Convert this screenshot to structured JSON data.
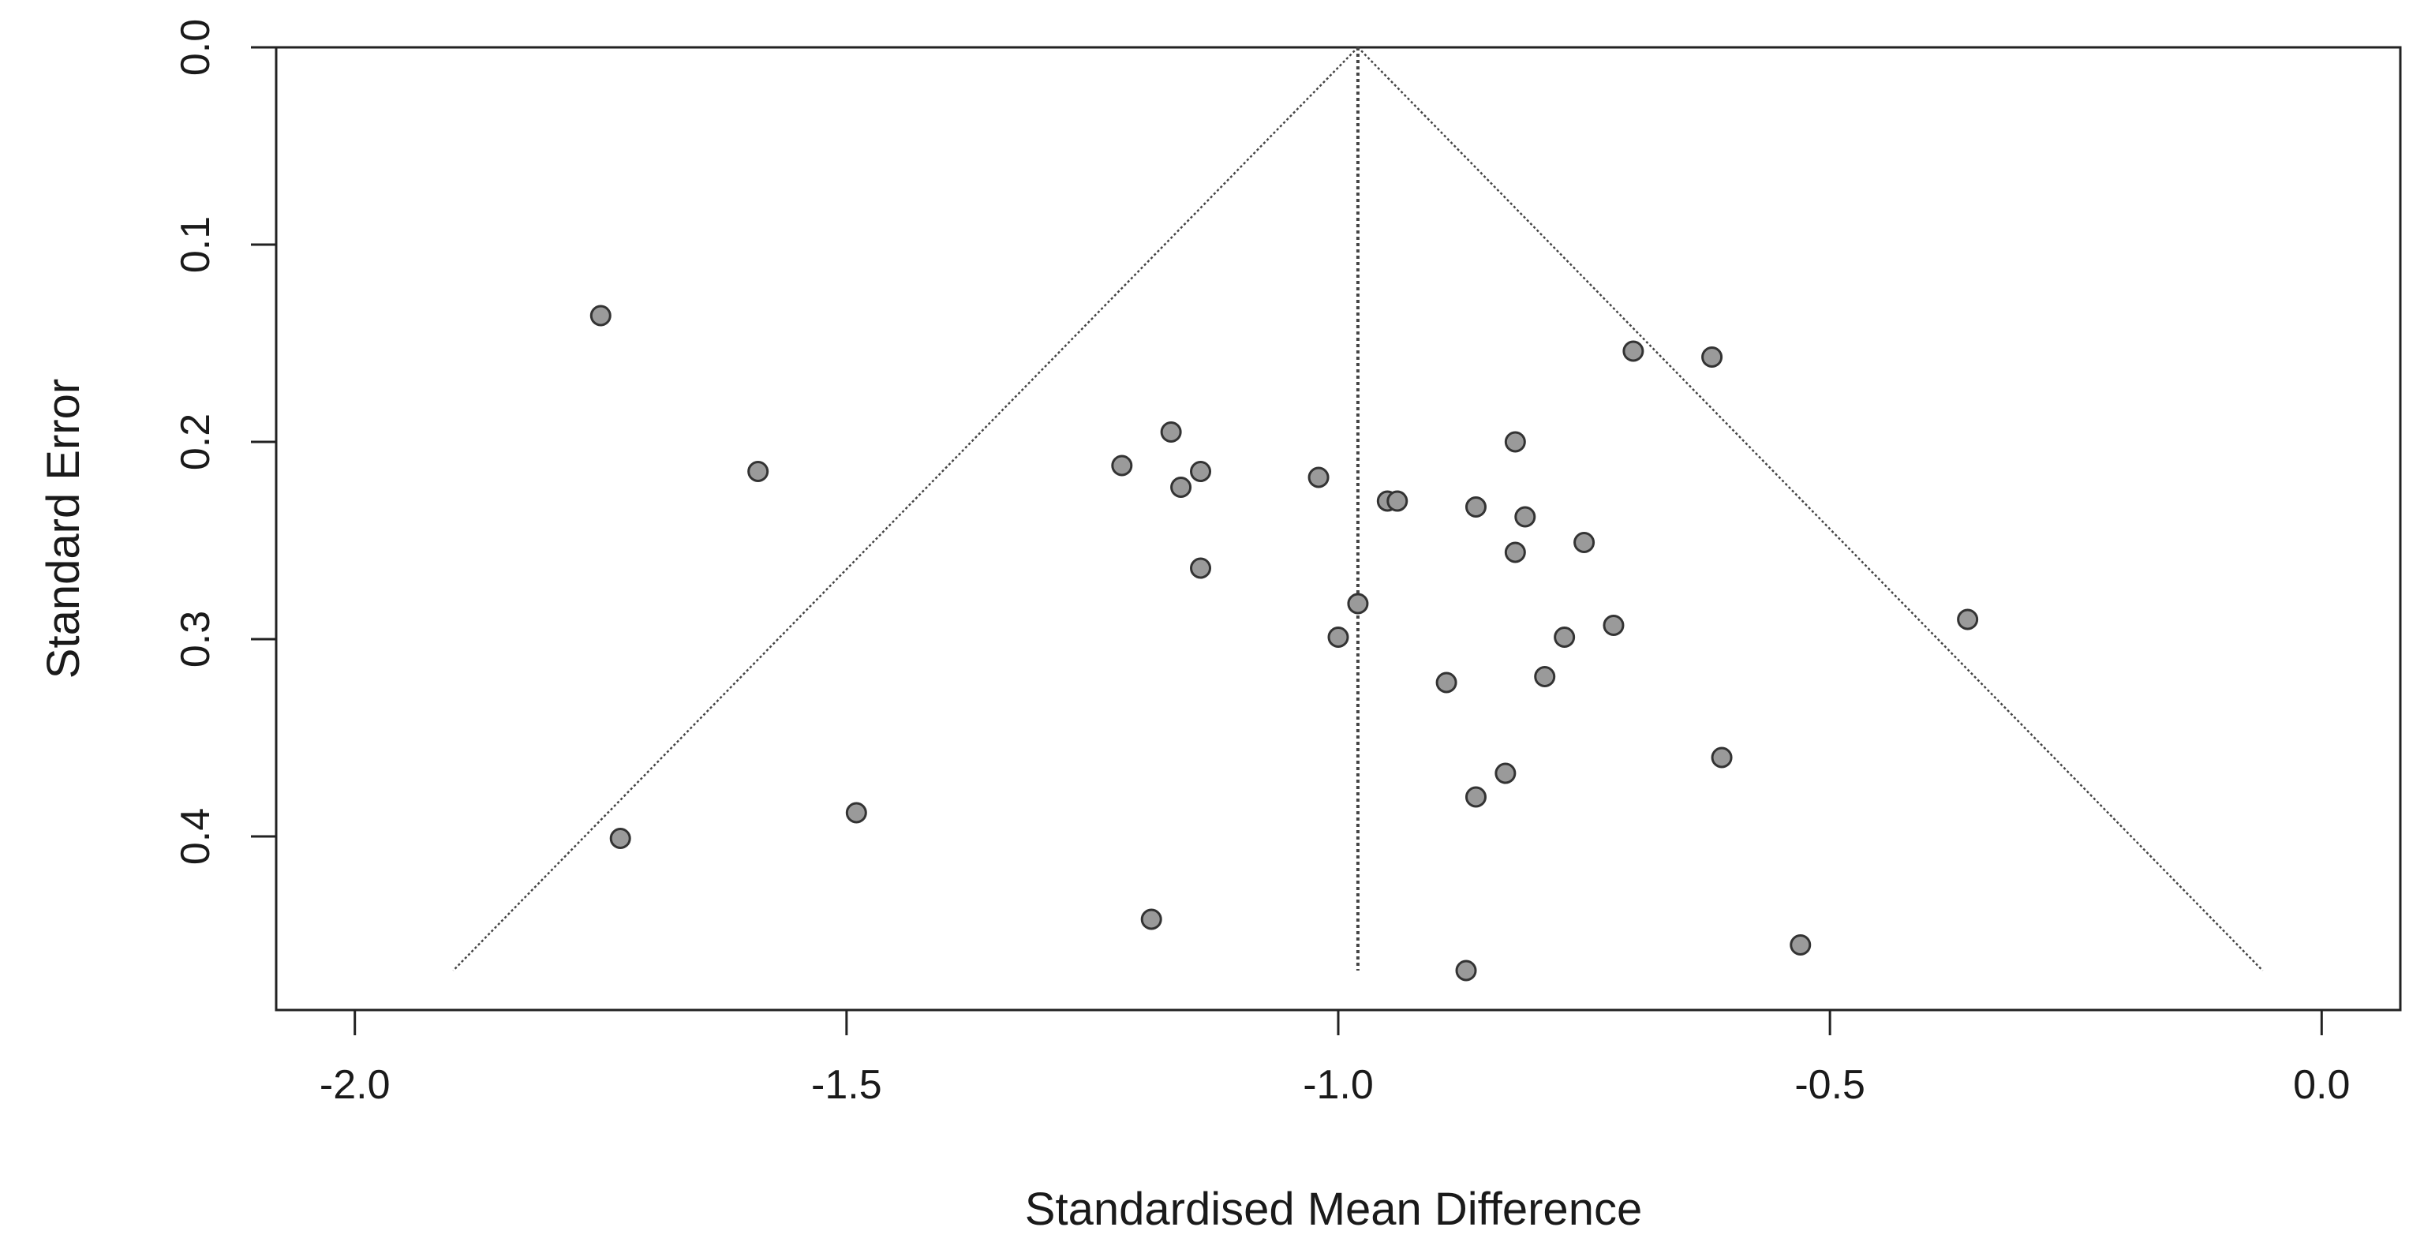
{
  "chart_data": {
    "type": "scatter",
    "subtype": "funnel-plot",
    "title": "",
    "xlabel": "Standardised Mean Difference",
    "ylabel": "Standard Error",
    "xlim": [
      -2.08,
      0.08
    ],
    "ylim": [
      0.0,
      0.488
    ],
    "y_reversed": true,
    "grid": false,
    "x_ticks": [
      -2.0,
      -1.5,
      -1.0,
      -0.5,
      0.0
    ],
    "x_tick_labels": [
      "-2.0",
      "-1.5",
      "-1.0",
      "-0.5",
      "0.0"
    ],
    "y_ticks": [
      0.0,
      0.1,
      0.2,
      0.3,
      0.4
    ],
    "y_tick_labels": [
      "0.0",
      "0.1",
      "0.2",
      "0.3",
      "0.4"
    ],
    "pooled_estimate": -0.98,
    "funnel": {
      "apex": [
        -0.98,
        0.0
      ],
      "left_base": [
        -1.9,
        0.468
      ],
      "right_base": [
        -0.06,
        0.468
      ]
    },
    "colors": {
      "point_fill": "#9a9a9a",
      "point_stroke": "#333333",
      "lines": "#444444",
      "frame": "#222222"
    },
    "points": [
      {
        "x": -1.75,
        "y": 0.136
      },
      {
        "x": -1.59,
        "y": 0.215
      },
      {
        "x": -1.73,
        "y": 0.401
      },
      {
        "x": -1.49,
        "y": 0.388
      },
      {
        "x": -1.22,
        "y": 0.212
      },
      {
        "x": -1.17,
        "y": 0.195
      },
      {
        "x": -1.16,
        "y": 0.223
      },
      {
        "x": -1.14,
        "y": 0.215
      },
      {
        "x": -1.14,
        "y": 0.264
      },
      {
        "x": -1.19,
        "y": 0.442
      },
      {
        "x": -1.02,
        "y": 0.218
      },
      {
        "x": -0.98,
        "y": 0.282
      },
      {
        "x": -1.0,
        "y": 0.299
      },
      {
        "x": -0.95,
        "y": 0.23
      },
      {
        "x": -0.94,
        "y": 0.23
      },
      {
        "x": -0.86,
        "y": 0.233
      },
      {
        "x": -0.82,
        "y": 0.2
      },
      {
        "x": -0.81,
        "y": 0.238
      },
      {
        "x": -0.82,
        "y": 0.256
      },
      {
        "x": -0.75,
        "y": 0.251
      },
      {
        "x": -0.77,
        "y": 0.299
      },
      {
        "x": -0.72,
        "y": 0.293
      },
      {
        "x": -0.79,
        "y": 0.319
      },
      {
        "x": -0.89,
        "y": 0.322
      },
      {
        "x": -0.83,
        "y": 0.368
      },
      {
        "x": -0.86,
        "y": 0.38
      },
      {
        "x": -0.87,
        "y": 0.468
      },
      {
        "x": -0.7,
        "y": 0.154
      },
      {
        "x": -0.62,
        "y": 0.157
      },
      {
        "x": -0.61,
        "y": 0.36
      },
      {
        "x": -0.36,
        "y": 0.29
      },
      {
        "x": -0.53,
        "y": 0.455
      }
    ]
  }
}
